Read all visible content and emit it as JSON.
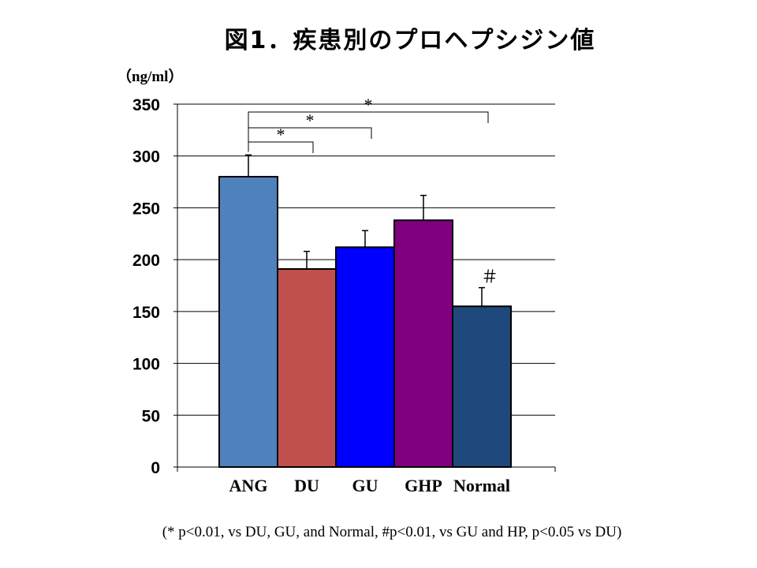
{
  "title": "図1．疾患別のプロヘプシジン値",
  "unit_label": "（ng/ml）",
  "footnote": "(* p<0.01, vs DU, GU, and Normal, #p<0.01, vs GU and HP, p<0.05 vs DU)",
  "chart_data": {
    "type": "bar",
    "title": "図1．疾患別のプロヘプシジン値",
    "ylabel": "（ng/ml）",
    "xlabel": "",
    "ylim": [
      0,
      350
    ],
    "yticks": [
      0,
      50,
      100,
      150,
      200,
      250,
      300,
      350
    ],
    "grid": true,
    "categories": [
      "ANG",
      "DU",
      "GU",
      "GHP",
      "Normal"
    ],
    "values": [
      280,
      191,
      212,
      238,
      155
    ],
    "errors": [
      21,
      17,
      16,
      24,
      18
    ],
    "bar_colors": [
      "#4f81bd",
      "#c0504d",
      "#0000ff",
      "#800080",
      "#1f497d"
    ],
    "bar_annotations": [
      "",
      "",
      "",
      "",
      "＃"
    ],
    "significance": [
      {
        "from": "ANG",
        "to": "DU",
        "label": "*"
      },
      {
        "from": "ANG",
        "to": "GU",
        "label": "*"
      },
      {
        "from": "ANG",
        "to": "Normal",
        "label": "*"
      }
    ]
  }
}
